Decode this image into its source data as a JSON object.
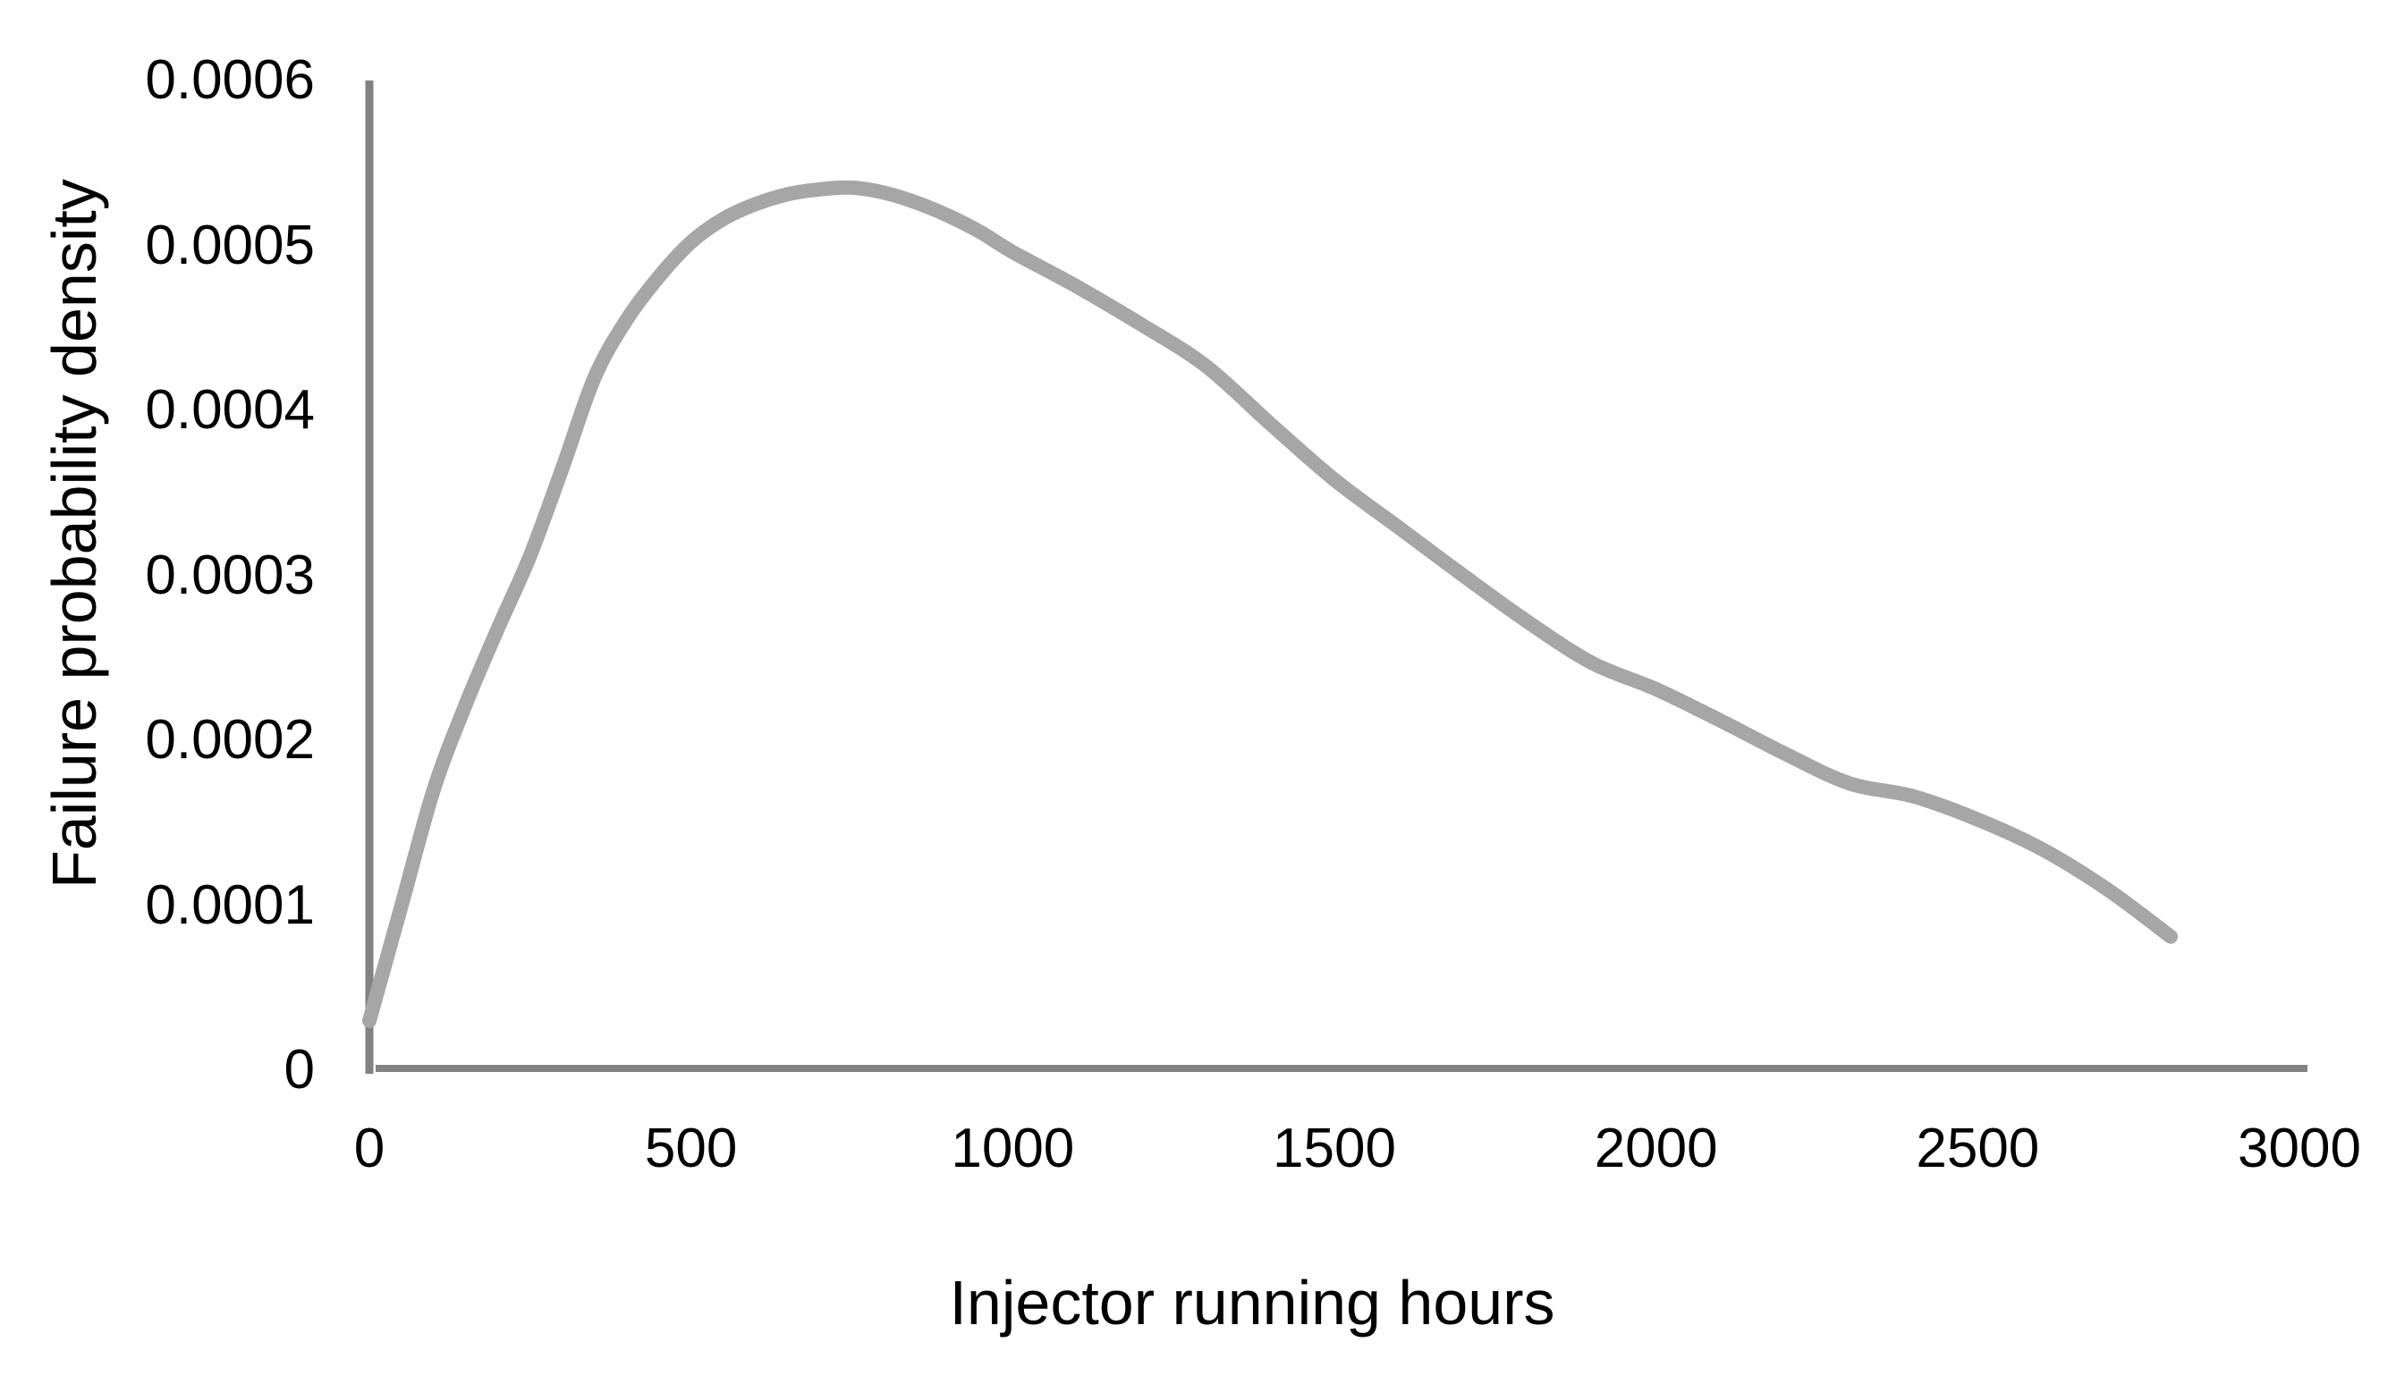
{
  "colors": {
    "background": "#FFFFFF",
    "axis_line": "#828282",
    "curve": "#A6A6A6",
    "text": "#000000"
  },
  "chart_data": {
    "type": "line",
    "title": "",
    "xlabel": "Injector running hours",
    "ylabel": "Failure probability density",
    "xlim": [
      0,
      3000
    ],
    "ylim": [
      0,
      0.0006
    ],
    "grid": false,
    "legend": "none",
    "x_ticks": [
      {
        "value": 0,
        "label": "0"
      },
      {
        "value": 500,
        "label": "500"
      },
      {
        "value": 1000,
        "label": "1000"
      },
      {
        "value": 1500,
        "label": "1500"
      },
      {
        "value": 2000,
        "label": "2000"
      },
      {
        "value": 2500,
        "label": "2500"
      },
      {
        "value": 3000,
        "label": "3000"
      }
    ],
    "y_ticks": [
      {
        "value": 0,
        "label": "0"
      },
      {
        "value": 0.0001,
        "label": "0.0001"
      },
      {
        "value": 0.0002,
        "label": "0.0002"
      },
      {
        "value": 0.0003,
        "label": "0.0003"
      },
      {
        "value": 0.0004,
        "label": "0.0004"
      },
      {
        "value": 0.0005,
        "label": "0.0005"
      },
      {
        "value": 0.0006,
        "label": "0.0006"
      }
    ],
    "series": [
      {
        "name": "failure-probability-density",
        "color": "#A6A6A6",
        "stroke_width": 16,
        "points": [
          [
            0,
            3e-05
          ],
          [
            50,
            0.0001
          ],
          [
            100,
            0.00017
          ],
          [
            150,
            0.000222
          ],
          [
            200,
            0.000268
          ],
          [
            250,
            0.000312
          ],
          [
            300,
            0.000365
          ],
          [
            350,
            0.00042
          ],
          [
            400,
            0.000455
          ],
          [
            450,
            0.000481
          ],
          [
            500,
            0.000502
          ],
          [
            550,
            0.000516
          ],
          [
            600,
            0.000525
          ],
          [
            650,
            0.000531
          ],
          [
            700,
            0.000534
          ],
          [
            750,
            0.000535
          ],
          [
            800,
            0.000532
          ],
          [
            850,
            0.000526
          ],
          [
            900,
            0.000518
          ],
          [
            950,
            0.000508
          ],
          [
            1000,
            0.000496
          ],
          [
            1100,
            0.000475
          ],
          [
            1200,
            0.000452
          ],
          [
            1300,
            0.000427
          ],
          [
            1400,
            0.000392
          ],
          [
            1500,
            0.000358
          ],
          [
            1600,
            0.000329
          ],
          [
            1700,
            0.0003
          ],
          [
            1800,
            0.000272
          ],
          [
            1900,
            0.000247
          ],
          [
            2000,
            0.000231
          ],
          [
            2100,
            0.000212
          ],
          [
            2200,
            0.000192
          ],
          [
            2300,
            0.000174
          ],
          [
            2400,
            0.000166
          ],
          [
            2500,
            0.000152
          ],
          [
            2600,
            0.000134
          ],
          [
            2700,
            0.00011
          ],
          [
            2800,
            8.1e-05
          ]
        ]
      }
    ]
  }
}
